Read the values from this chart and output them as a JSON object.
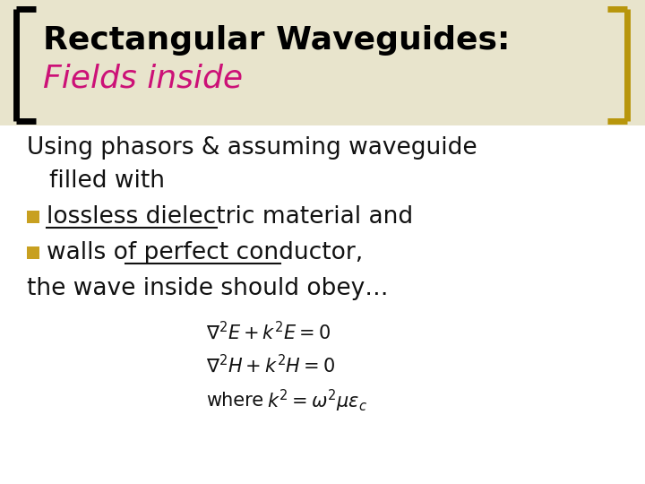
{
  "title1": "Rectangular Waveguides:",
  "title2": "Fields inside",
  "title1_color": "#000000",
  "title2_color": "#CC1177",
  "background_color": "#ffffff",
  "bracket_color_left": "#000000",
  "bracket_color_right": "#B8960C",
  "header_bg": "#E8E0C0",
  "bullet_color": "#C8A020",
  "body_text_color": "#111111",
  "line1": "Using phasors & assuming waveguide",
  "line2": "    filled with",
  "bullet1": "lossless dielectric material and",
  "bullet2": "walls of perfect conductor,",
  "line3": "the wave inside should obey…",
  "where_text": "where",
  "figsize": [
    7.2,
    5.4
  ],
  "dpi": 100
}
